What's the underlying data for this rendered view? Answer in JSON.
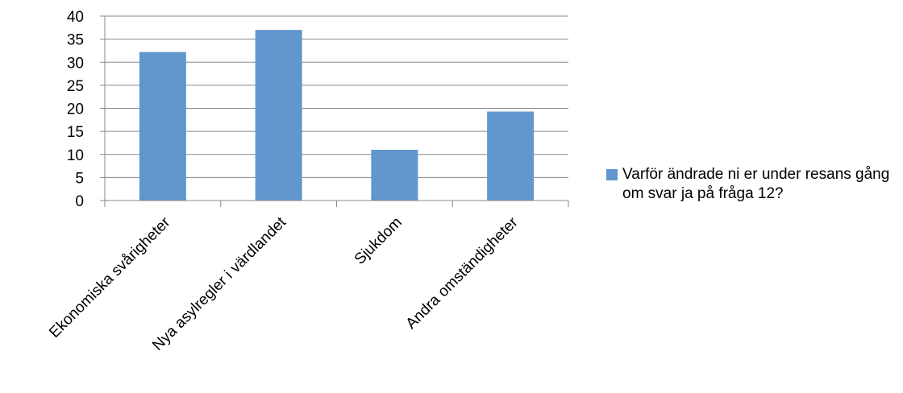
{
  "chart_data": {
    "type": "bar",
    "categories": [
      "Ekonomiska svårigheter",
      "Nya asylregler i värdlandet",
      "Sjukdom",
      "Andra omständigheter"
    ],
    "series": [
      {
        "name": "Varför ändrade ni er under resans gång om svar ja på fråga 12?",
        "values": [
          32.2,
          37,
          11,
          19.3
        ],
        "color": "#6196cf"
      }
    ],
    "y_ticks": [
      "0",
      "5",
      "10",
      "15",
      "20",
      "25",
      "30",
      "35",
      "40"
    ],
    "ylim": [
      0,
      40
    ],
    "grid": true,
    "legend_position": "right",
    "colors": {
      "bar": "#6196cf",
      "grid": "#888888",
      "axis": "#888888"
    }
  }
}
